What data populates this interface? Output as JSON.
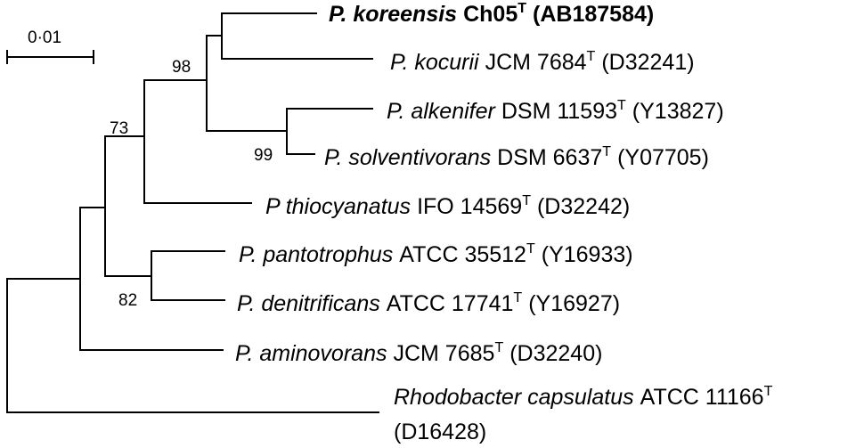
{
  "scale": {
    "label": "0·01"
  },
  "bootstrap": {
    "b98": "98",
    "b73": "73",
    "b99": "99",
    "b82": "82"
  },
  "taxa": [
    {
      "species": "P. koreensis",
      "strain": "Ch05",
      "type_mark": "T",
      "accession": "(AB187584)",
      "bold": true
    },
    {
      "species": "P. kocurii",
      "strain": "JCM 7684",
      "type_mark": "T",
      "accession": "(D32241)",
      "bold": false
    },
    {
      "species": "P. alkenifer",
      "strain": "DSM 11593",
      "type_mark": "T",
      "accession": "(Y13827)",
      "bold": false
    },
    {
      "species": "P. solventivorans",
      "strain": "DSM 6637",
      "type_mark": "T",
      "accession": "(Y07705)",
      "bold": false
    },
    {
      "species": "P thiocyanatus",
      "strain": "IFO 14569",
      "type_mark": "T",
      "accession": "(D32242)",
      "bold": false
    },
    {
      "species": "P. pantotrophus",
      "strain": "ATCC 35512",
      "type_mark": "T",
      "accession": "(Y16933)",
      "bold": false
    },
    {
      "species": "P. denitrificans",
      "strain": "ATCC 17741",
      "type_mark": "T",
      "accession": "(Y16927)",
      "bold": false
    },
    {
      "species": "P. aminovorans",
      "strain": "JCM 7685",
      "type_mark": "T",
      "accession": "(D32240)",
      "bold": false
    },
    {
      "species": "Rhodobacter capsulatus",
      "strain": "ATCC 11166",
      "type_mark": "T",
      "accession": "(D16428)",
      "bold": false
    }
  ]
}
